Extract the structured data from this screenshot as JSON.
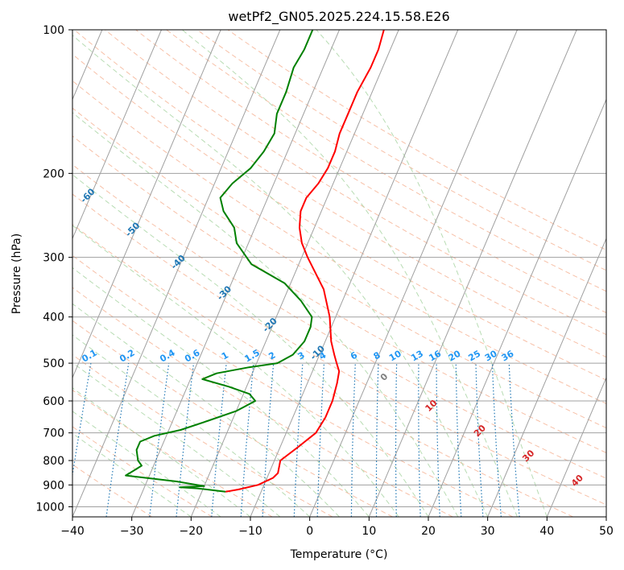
{
  "chart_data": {
    "type": "line",
    "title": "wetPf2_GN05.2025.224.15.58.E26",
    "xlabel": "Temperature (°C)",
    "ylabel": "Pressure (hPa)",
    "xlim": [
      -40,
      50
    ],
    "ylim": [
      1050,
      100
    ],
    "y_scale": "log",
    "grid": true,
    "skew_t": true,
    "x_ticks": [
      -40,
      -30,
      -20,
      -10,
      0,
      10,
      20,
      30,
      40,
      50
    ],
    "y_ticks": [
      100,
      200,
      300,
      400,
      500,
      600,
      700,
      800,
      900,
      1000
    ],
    "colors": {
      "temperature": "#ff0000",
      "dewpoint": "#008000",
      "isotherm": "#a0a0a0",
      "dry_adiabat": "#f4a582",
      "moist_adiabat": "#a6d3a0",
      "mixing_ratio": "#1f77b4",
      "isotherm_label": "#1f77b4",
      "theta_label": "#d62728"
    },
    "series": [
      {
        "key": "temperature",
        "pressure": [
          930,
          920,
          900,
          870,
          850,
          800,
          750,
          700,
          650,
          600,
          550,
          520,
          500,
          480,
          450,
          400,
          350,
          300,
          280,
          260,
          240,
          225,
          210,
          195,
          180,
          165,
          150,
          135,
          120,
          110,
          100
        ],
        "values": [
          -16,
          -14,
          -11,
          -9,
          -8.5,
          -9,
          -7,
          -5,
          -4.5,
          -4.5,
          -5,
          -5.5,
          -6.5,
          -7.5,
          -9,
          -11,
          -14,
          -19,
          -21,
          -22.5,
          -23.5,
          -23.5,
          -22.5,
          -22,
          -22,
          -22.5,
          -22.5,
          -22.5,
          -22,
          -22,
          -22.5
        ]
      },
      {
        "key": "dewpoint",
        "pressure": [
          930,
          915,
          910,
          905,
          885,
          860,
          840,
          820,
          800,
          780,
          760,
          730,
          710,
          690,
          660,
          630,
          600,
          580,
          560,
          540,
          525,
          510,
          500,
          480,
          450,
          420,
          400,
          370,
          340,
          310,
          280,
          260,
          240,
          225,
          210,
          195,
          180,
          165,
          150,
          135,
          120,
          110,
          100
        ],
        "values": [
          -16,
          -21,
          -24,
          -20,
          -25,
          -34,
          -33,
          -32,
          -33,
          -33.5,
          -34,
          -34,
          -32,
          -28,
          -24,
          -20,
          -17.5,
          -19,
          -23,
          -28,
          -26,
          -21,
          -16.5,
          -14.5,
          -13.5,
          -13.5,
          -14,
          -17,
          -21,
          -28,
          -32,
          -33.5,
          -36.5,
          -38,
          -37,
          -35,
          -34,
          -33.5,
          -34.5,
          -34.5,
          -35,
          -34.5,
          -34.5
        ]
      }
    ]
  }
}
